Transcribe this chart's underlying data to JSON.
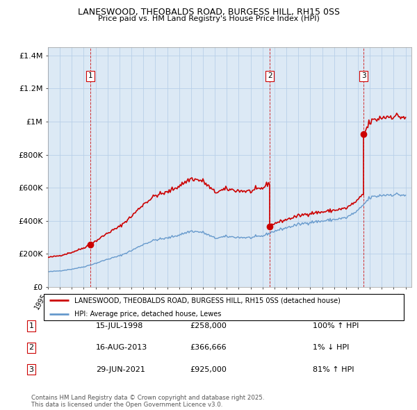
{
  "title_line1": "LANESWOOD, THEOBALDS ROAD, BURGESS HILL, RH15 0SS",
  "title_line2": "Price paid vs. HM Land Registry's House Price Index (HPI)",
  "house_color": "#cc0000",
  "hpi_color": "#6699cc",
  "background_color": "#dce9f5",
  "grid_color": "#b8cfe8",
  "yticks": [
    0,
    200000,
    400000,
    600000,
    800000,
    1000000,
    1200000,
    1400000
  ],
  "ytick_labels": [
    "£0",
    "£200K",
    "£400K",
    "£600K",
    "£800K",
    "£1M",
    "£1.2M",
    "£1.4M"
  ],
  "legend_house": "LANESWOOD, THEOBALDS ROAD, BURGESS HILL, RH15 0SS (detached house)",
  "legend_hpi": "HPI: Average price, detached house, Lewes",
  "sale1_date": "15-JUL-1998",
  "sale1_price": 258000,
  "sale1_label": "100% ↑ HPI",
  "sale2_date": "16-AUG-2013",
  "sale2_price": 366666,
  "sale2_label": "1% ↓ HPI",
  "sale3_date": "29-JUN-2021",
  "sale3_price": 925000,
  "sale3_label": "81% ↑ HPI",
  "footnote1": "Contains HM Land Registry data © Crown copyright and database right 2025.",
  "footnote2": "This data is licensed under the Open Government Licence v3.0.",
  "sale_years": [
    1998.54,
    2013.62,
    2021.49
  ],
  "sale_prices": [
    258000,
    366666,
    925000
  ],
  "sale_numbers": [
    1,
    2,
    3
  ],
  "vline_color": "#cc0000",
  "xlim_left": 1995.0,
  "xlim_right": 2025.5,
  "ylim_bottom": 0,
  "ylim_top": 1450000
}
